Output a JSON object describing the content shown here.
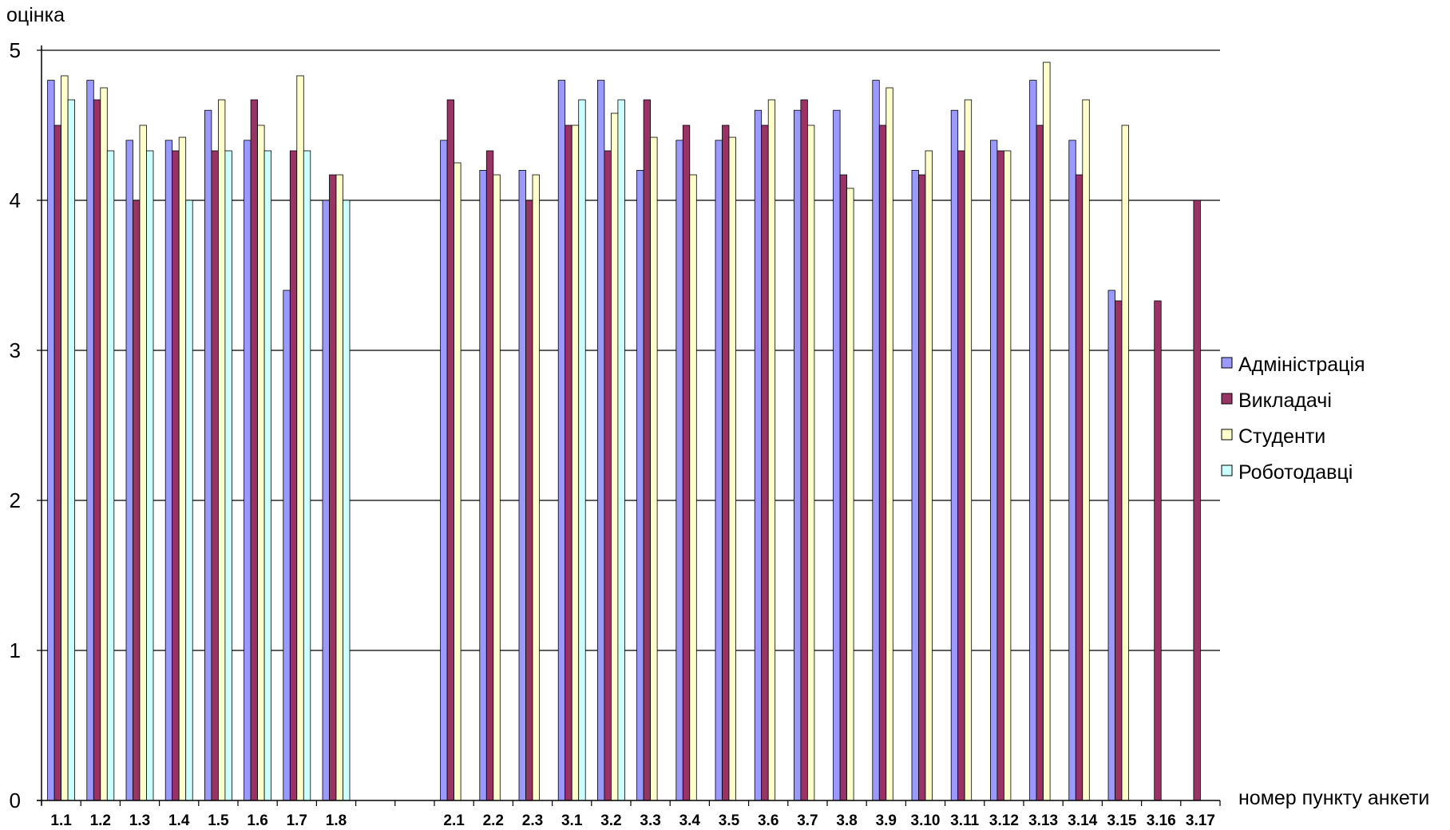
{
  "chart_data": {
    "type": "bar",
    "ylabel": "оцінка",
    "xlabel": "номер пункту анкети",
    "ylim": [
      0,
      5
    ],
    "yticks": [
      0,
      1,
      2,
      3,
      4,
      5
    ],
    "grid": true,
    "legend_position": "right",
    "slots": [
      "1.1",
      "1.2",
      "1.3",
      "1.4",
      "1.5",
      "1.6",
      "1.7",
      "1.8",
      "",
      "",
      "2.1",
      "2.2",
      "2.3",
      "3.1",
      "3.2",
      "3.3",
      "3.4",
      "3.5",
      "3.6",
      "3.7",
      "3.8",
      "3.9",
      "3.10",
      "3.11",
      "3.12",
      "3.13",
      "3.14",
      "3.15",
      "3.16",
      "3.17"
    ],
    "categories": [
      "1.1",
      "1.2",
      "1.3",
      "1.4",
      "1.5",
      "1.6",
      "1.7",
      "1.8",
      "2.1",
      "2.2",
      "2.3",
      "3.1",
      "3.2",
      "3.3",
      "3.4",
      "3.5",
      "3.6",
      "3.7",
      "3.8",
      "3.9",
      "3.10",
      "3.11",
      "3.12",
      "3.13",
      "3.14",
      "3.15",
      "3.16",
      "3.17"
    ],
    "series": [
      {
        "name": "Адміністрація",
        "color": "#9999ff",
        "values": [
          4.8,
          4.8,
          4.4,
          4.4,
          4.6,
          4.4,
          3.4,
          4.0,
          4.4,
          4.2,
          4.2,
          4.8,
          4.8,
          4.2,
          4.4,
          4.4,
          4.6,
          4.6,
          4.6,
          4.8,
          4.2,
          4.6,
          4.4,
          4.8,
          4.4,
          3.4,
          null,
          null
        ]
      },
      {
        "name": "Викладачі",
        "color": "#993366",
        "values": [
          4.5,
          4.67,
          4.0,
          4.33,
          4.33,
          4.67,
          4.33,
          4.17,
          4.67,
          4.33,
          4.0,
          4.5,
          4.33,
          4.67,
          4.5,
          4.5,
          4.5,
          4.67,
          4.17,
          4.5,
          4.17,
          4.33,
          4.33,
          4.5,
          4.17,
          3.33,
          3.33,
          4.0
        ]
      },
      {
        "name": "Студенти",
        "color": "#ffffcc",
        "values": [
          4.83,
          4.75,
          4.5,
          4.42,
          4.67,
          4.5,
          4.83,
          4.17,
          4.25,
          4.17,
          4.17,
          4.5,
          4.58,
          4.42,
          4.17,
          4.42,
          4.67,
          4.5,
          4.08,
          4.75,
          4.33,
          4.67,
          4.33,
          4.92,
          4.67,
          4.5,
          null,
          null
        ]
      },
      {
        "name": "Роботодавці",
        "color": "#ccffff",
        "values": [
          4.67,
          4.33,
          4.33,
          4.0,
          4.33,
          4.33,
          4.33,
          4.0,
          null,
          null,
          null,
          4.67,
          4.67,
          null,
          null,
          null,
          null,
          null,
          null,
          null,
          null,
          null,
          null,
          null,
          null,
          null,
          null,
          null
        ]
      }
    ]
  }
}
